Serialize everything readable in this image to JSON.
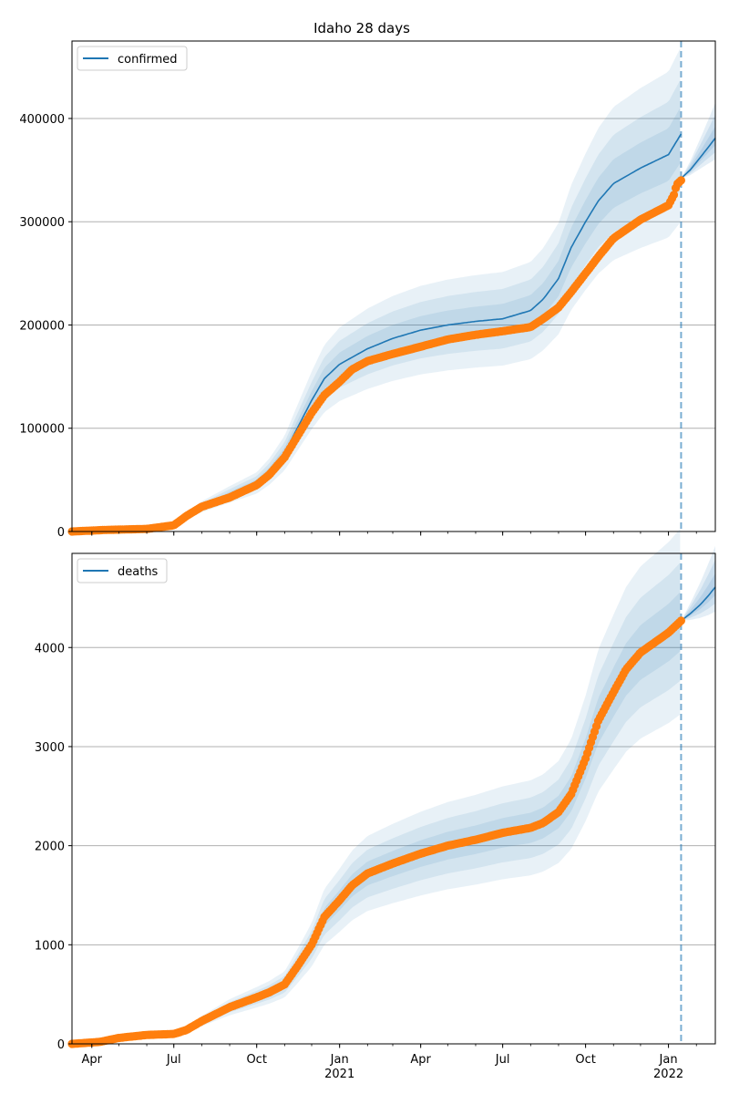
{
  "chart_data": [
    {
      "type": "line",
      "title": "Idaho 28 days",
      "xlabel": "",
      "ylabel": "",
      "xlim": [
        "2020-03-10",
        "2022-02-22"
      ],
      "ylim": [
        0,
        475000
      ],
      "yticks": [
        0,
        100000,
        200000,
        300000,
        400000
      ],
      "ytick_labels": [
        "0",
        "100000",
        "200000",
        "300000",
        "400000"
      ],
      "grid": "horizontal",
      "legend": "top-left",
      "vline_date": "2022-01-15",
      "series": [
        {
          "name": "confirmed",
          "kind": "line",
          "color": "#1f77b4",
          "x": [
            "2020-03-10",
            "2020-04-15",
            "2020-06-01",
            "2020-07-01",
            "2020-08-01",
            "2020-09-01",
            "2020-10-01",
            "2020-10-15",
            "2020-11-01",
            "2020-11-15",
            "2020-12-01",
            "2020-12-15",
            "2021-01-01",
            "2021-02-01",
            "2021-03-01",
            "2021-04-01",
            "2021-05-01",
            "2021-06-01",
            "2021-07-01",
            "2021-08-01",
            "2021-08-15",
            "2021-09-01",
            "2021-09-15",
            "2021-10-01",
            "2021-10-15",
            "2021-11-01",
            "2021-12-01",
            "2022-01-01",
            "2022-01-15"
          ],
          "y": [
            0,
            1700,
            2800,
            6500,
            24000,
            36000,
            47000,
            58000,
            76000,
            100000,
            127000,
            148000,
            162000,
            177000,
            187000,
            195000,
            200000,
            203500,
            206000,
            214000,
            225000,
            245000,
            275000,
            300000,
            320000,
            337000,
            352000,
            365000,
            385000
          ]
        },
        {
          "name": "",
          "kind": "line",
          "color": "#1f77b4",
          "x": [
            "2022-01-15",
            "2022-01-25",
            "2022-02-05",
            "2022-02-14",
            "2022-02-22"
          ],
          "y": [
            342000,
            350000,
            362000,
            372000,
            381000
          ]
        },
        {
          "name": "",
          "kind": "observed",
          "color": "#ff7f0e",
          "x": [
            "2020-03-10",
            "2020-04-15",
            "2020-06-01",
            "2020-07-01",
            "2020-07-15",
            "2020-08-01",
            "2020-09-01",
            "2020-10-01",
            "2020-10-15",
            "2020-11-01",
            "2020-11-15",
            "2020-12-01",
            "2020-12-15",
            "2021-01-01",
            "2021-01-15",
            "2021-02-01",
            "2021-03-01",
            "2021-04-01",
            "2021-05-01",
            "2021-06-01",
            "2021-07-01",
            "2021-08-01",
            "2021-08-15",
            "2021-09-01",
            "2021-09-15",
            "2021-10-01",
            "2021-10-15",
            "2021-11-01",
            "2021-12-01",
            "2022-01-01",
            "2022-01-07",
            "2022-01-10",
            "2022-01-15"
          ],
          "y": [
            0,
            1500,
            2500,
            6000,
            15000,
            24000,
            33000,
            45000,
            55000,
            72000,
            92000,
            115000,
            132000,
            145000,
            157000,
            165000,
            172000,
            179000,
            186000,
            190500,
            194000,
            198000,
            206000,
            217000,
            232000,
            250000,
            266000,
            284000,
            302000,
            316000,
            326000,
            336000,
            340000
          ]
        }
      ]
    },
    {
      "type": "line",
      "title": "",
      "xlabel": "",
      "ylabel": "",
      "xlim": [
        "2020-03-10",
        "2022-02-22"
      ],
      "ylim": [
        0,
        4950
      ],
      "yticks": [
        0,
        1000,
        2000,
        3000,
        4000
      ],
      "ytick_labels": [
        "0",
        "1000",
        "2000",
        "3000",
        "4000"
      ],
      "xticks": [
        "2020-04-01",
        "2020-07-01",
        "2020-10-01",
        "2021-01-01",
        "2021-04-01",
        "2021-07-01",
        "2021-10-01",
        "2022-01-01"
      ],
      "xtick_labels": [
        "Apr",
        "Jul",
        "Oct",
        "Jan",
        "Apr",
        "Jul",
        "Oct",
        "Jan"
      ],
      "xtick_year_labels": [
        "",
        "",
        "",
        "2021",
        "",
        "",
        "",
        "2022"
      ],
      "grid": "horizontal",
      "legend": "top-left",
      "vline_date": "2022-01-15",
      "series": [
        {
          "name": "deaths",
          "kind": "line",
          "color": "#1f77b4",
          "x": [
            "2022-01-15",
            "2022-01-25",
            "2022-02-05",
            "2022-02-14",
            "2022-02-22"
          ],
          "y": [
            4270,
            4340,
            4430,
            4520,
            4610
          ]
        },
        {
          "name": "",
          "kind": "observed",
          "color": "#ff7f0e",
          "x": [
            "2020-03-10",
            "2020-04-10",
            "2020-05-01",
            "2020-06-01",
            "2020-07-01",
            "2020-07-15",
            "2020-08-01",
            "2020-09-01",
            "2020-10-01",
            "2020-10-15",
            "2020-11-01",
            "2020-11-15",
            "2020-12-01",
            "2020-12-15",
            "2021-01-01",
            "2021-01-15",
            "2021-02-01",
            "2021-03-01",
            "2021-04-01",
            "2021-05-01",
            "2021-06-01",
            "2021-07-01",
            "2021-08-01",
            "2021-08-15",
            "2021-09-01",
            "2021-09-15",
            "2021-10-01",
            "2021-10-15",
            "2021-11-01",
            "2021-11-15",
            "2021-12-01",
            "2022-01-01",
            "2022-01-15"
          ],
          "y": [
            0,
            20,
            60,
            90,
            100,
            140,
            230,
            370,
            470,
            520,
            600,
            780,
            1000,
            1280,
            1450,
            1600,
            1720,
            1820,
            1920,
            2000,
            2060,
            2130,
            2180,
            2230,
            2340,
            2520,
            2880,
            3260,
            3550,
            3780,
            3950,
            4150,
            4270
          ]
        }
      ]
    }
  ],
  "colors": {
    "line": "#1f77b4",
    "observed": "#ff7f0e",
    "band": "#1f77b4",
    "grid": "#b0b0b0"
  }
}
